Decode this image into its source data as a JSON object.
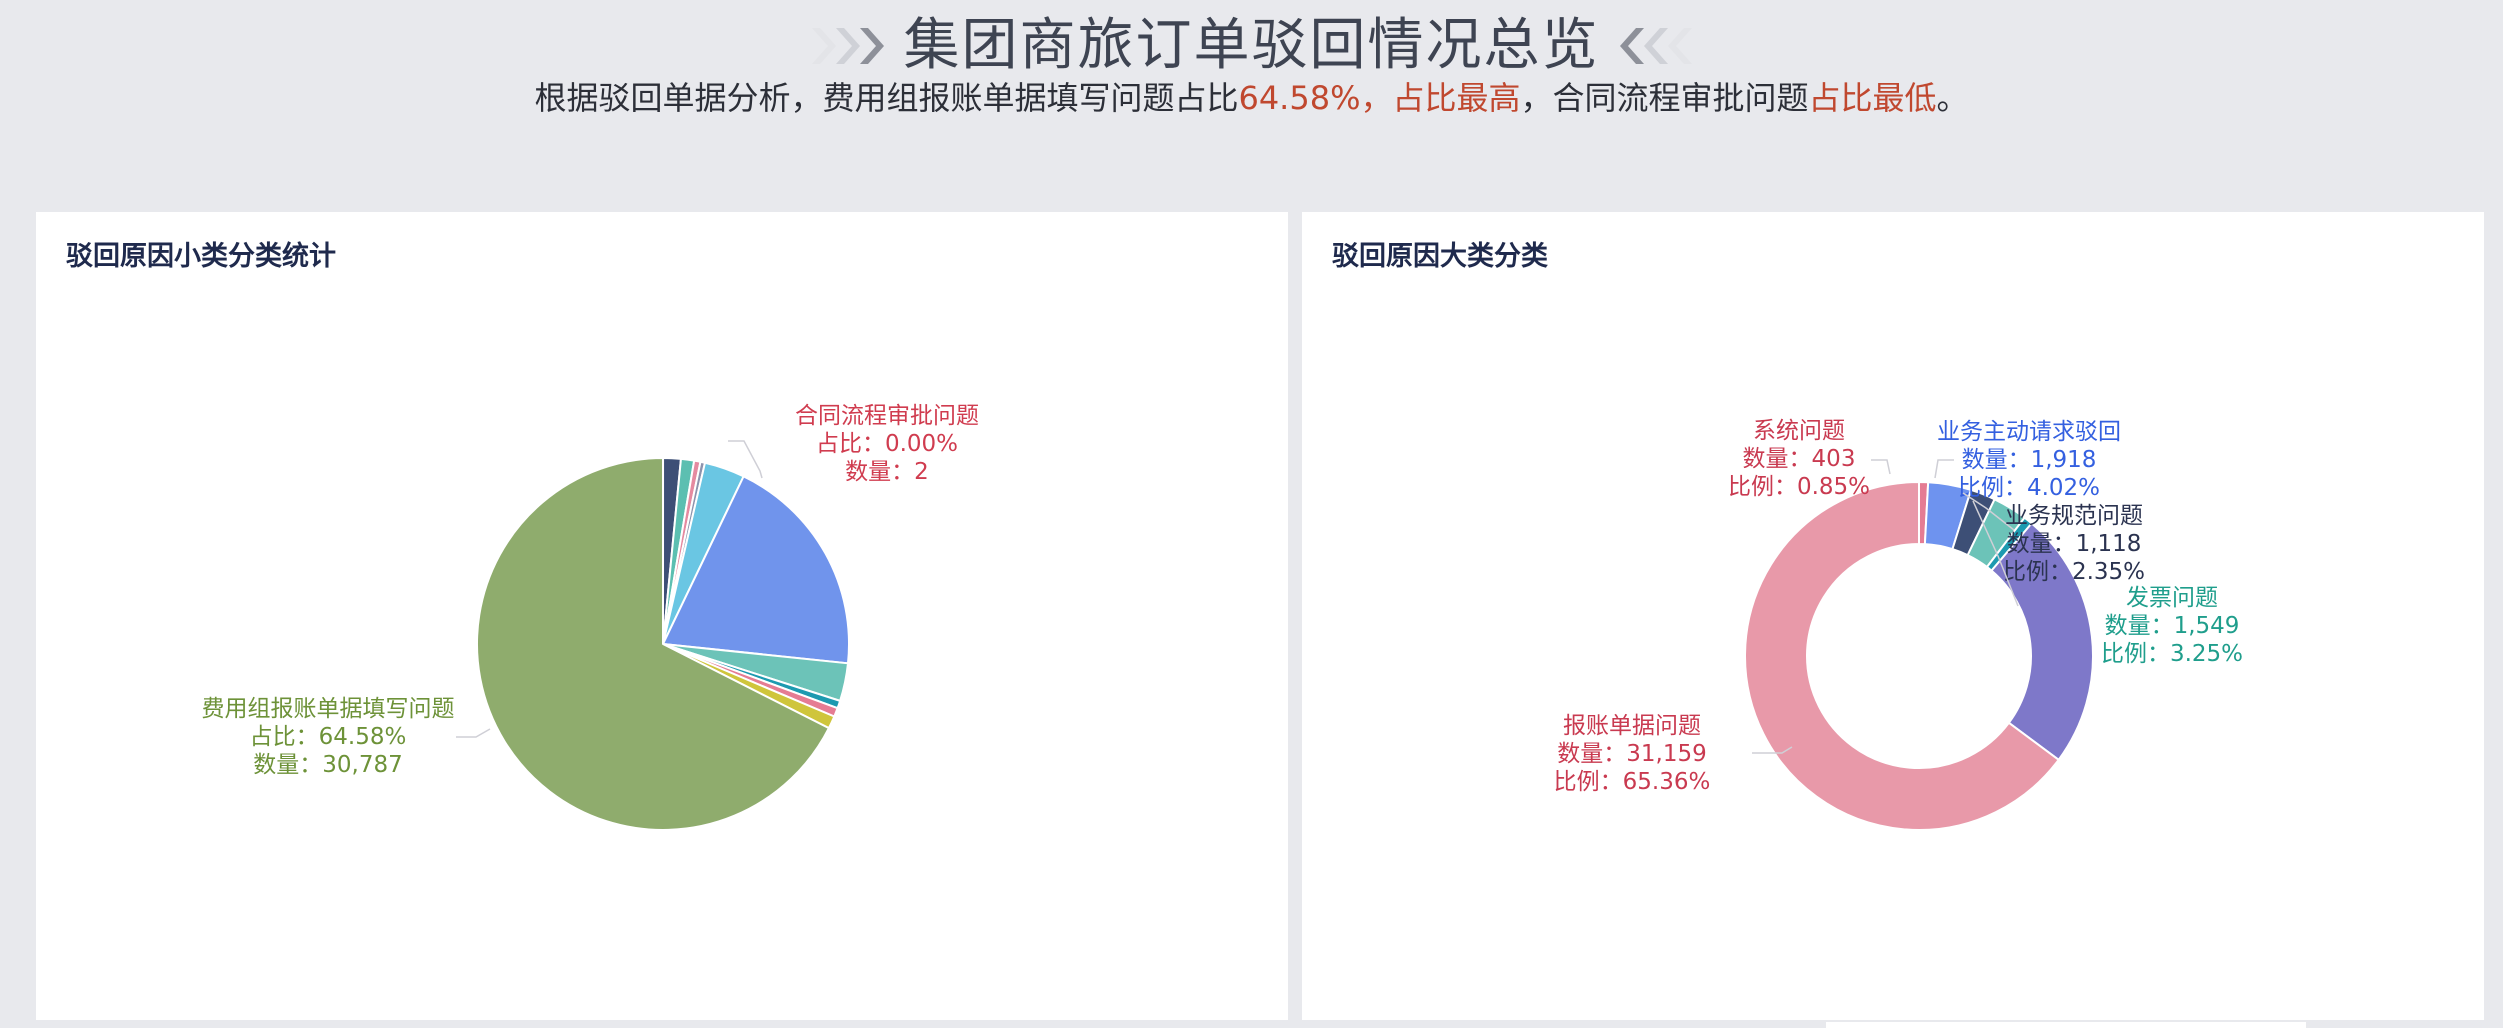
{
  "header": {
    "title": "集团商旅订单驳回情况总览",
    "subtitle_prefix": "根据驳回单据分析，费用组报账单据填写问题占比",
    "subtitle_pct": "64.58%，",
    "subtitle_high": "占比最高",
    "subtitle_mid": "，合同流程审批问题",
    "subtitle_low": "占比最低",
    "subtitle_end": "。"
  },
  "panels": {
    "left_title": "驳回原因小类分类统计",
    "right_title": "驳回原因大类分类"
  },
  "colors": {
    "highlight": "#c0482f",
    "title": "#3e4452"
  },
  "chart_data": [
    {
      "type": "pie",
      "title": "驳回原因小类分类统计",
      "slices": [
        {
          "name": "合同流程审批问题",
          "value": 2,
          "percent": "0.00%",
          "color": "#c94a5e",
          "labeled": true
        },
        {
          "name": "",
          "value": 700,
          "color": "#3d4f76",
          "labeled": false
        },
        {
          "name": "",
          "value": 520,
          "color": "#5cbfb1",
          "labeled": false
        },
        {
          "name": "",
          "value": 250,
          "color": "#e58aa0",
          "labeled": false
        },
        {
          "name": "",
          "value": 180,
          "color": "#8d93ad",
          "labeled": false
        },
        {
          "name": "",
          "value": 1600,
          "color": "#6ac6e3",
          "labeled": false
        },
        {
          "name": "",
          "value": 8900,
          "color": "#7094ec",
          "labeled": false
        },
        {
          "name": "",
          "value": 1500,
          "color": "#6cc3b8",
          "labeled": false
        },
        {
          "name": "",
          "value": 300,
          "color": "#1d9ab0",
          "labeled": false
        },
        {
          "name": "",
          "value": 350,
          "color": "#e57c93",
          "labeled": false
        },
        {
          "name": "",
          "value": 500,
          "color": "#cfc53b",
          "labeled": false
        },
        {
          "name": "费用组报账单据填写问题",
          "value": 30787,
          "percent": "64.58%",
          "color": "#8fac6d",
          "labeled": true
        }
      ],
      "label_texts": {
        "contract_name": "合同流程审批问题",
        "contract_ratio": "占比：0.00%",
        "contract_count": "数量：2",
        "expense_name": "费用组报账单据填写问题",
        "expense_ratio": "占比：64.58%",
        "expense_count": "数量：30,787"
      }
    },
    {
      "type": "pie",
      "subtype": "donut",
      "title": "驳回原因大类分类",
      "slices": [
        {
          "name": "系统问题",
          "value": 403,
          "percent": "0.85%",
          "color": "#e57c93"
        },
        {
          "name": "业务主动请求驳回",
          "value": 1918,
          "percent": "4.02%",
          "color": "#6e93ef"
        },
        {
          "name": "业务规范问题",
          "value": 1118,
          "percent": "2.35%",
          "color": "#3d4f76"
        },
        {
          "name": "发票问题",
          "value": 1549,
          "percent": "3.25%",
          "color": "#6cc3b8"
        },
        {
          "name": "",
          "value": 400,
          "color": "#1d9ab0"
        },
        {
          "name": "",
          "value": 11520,
          "color": "#7e78c9"
        },
        {
          "name": "报账单据问题",
          "value": 31159,
          "percent": "65.36%",
          "color": "#e899a9"
        }
      ],
      "label_texts": {
        "sys_name": "系统问题",
        "sys_count": "数量：403",
        "sys_ratio": "比例：0.85%",
        "biz_name": "业务主动请求驳回",
        "biz_count": "数量：1,918",
        "biz_ratio": "比例：4.02%",
        "norm_name": "业务规范问题",
        "norm_count": "数量：1,118",
        "norm_ratio": "比例：2.35%",
        "inv_name": "发票问题",
        "inv_count": "数量：1,549",
        "inv_ratio": "比例：3.25%",
        "doc_name": "报账单据问题",
        "doc_count": "数量：31,159",
        "doc_ratio": "比例：65.36%"
      }
    }
  ]
}
